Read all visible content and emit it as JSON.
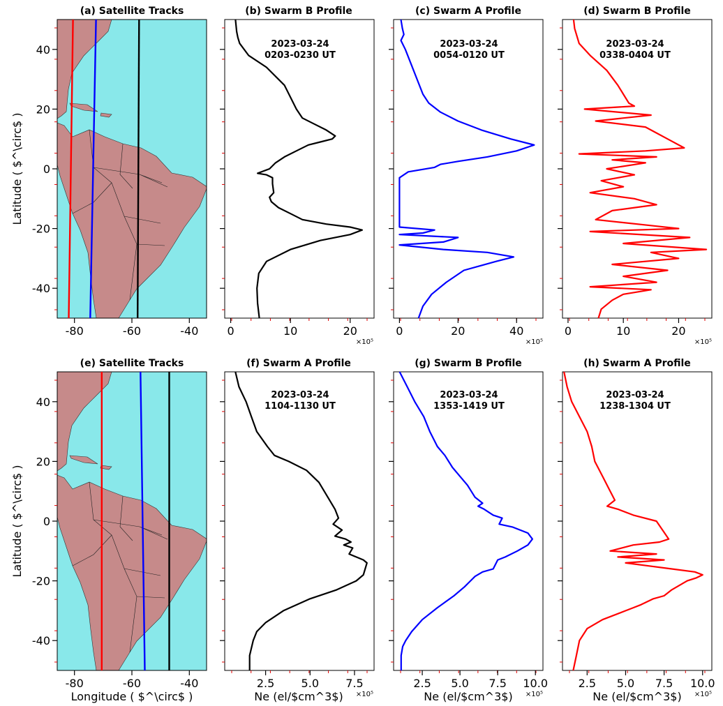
{
  "figure": {
    "ylabel": "Latitude ( $^\\circ$ )",
    "xlabel_map": "Longitude ( $^\\circ$ )",
    "xlabel_ne": "Ne (el/$cm^3$)",
    "multiplier": "×10⁵"
  },
  "chart_data": [
    {
      "id": "a",
      "type": "map",
      "title": "(a) Satellite Tracks",
      "xlim": [
        -86,
        -34
      ],
      "ylim": [
        -50,
        50
      ],
      "xticks": [
        -80,
        -60,
        -40
      ],
      "yticks": [
        -40,
        -20,
        0,
        20,
        40
      ],
      "tracks": [
        {
          "color": "#ff0000",
          "lon": [
            -80.5,
            -82.0
          ],
          "lat": [
            50,
            -50
          ]
        },
        {
          "color": "#0000ff",
          "lon": [
            -72.5,
            -74.5
          ],
          "lat": [
            50,
            -50
          ]
        },
        {
          "color": "#000000",
          "lon": [
            -57.5,
            -58.0
          ],
          "lat": [
            50,
            -50
          ]
        }
      ]
    },
    {
      "id": "b",
      "type": "line",
      "title": "(b) Swarm B Profile",
      "date": "2023-03-24",
      "time": "0203-0230 UT",
      "color": "#000000",
      "xlim": [
        -1,
        24
      ],
      "ylim": [
        -50,
        50
      ],
      "xticks": [
        0,
        10,
        20
      ],
      "show_xlabel": false,
      "x": [
        0.8,
        1.0,
        1.2,
        1.5,
        3.0,
        6.0,
        9.0,
        11.0,
        12.0,
        14.0,
        16.0,
        17.5,
        17.0,
        15.0,
        13.0,
        11.0,
        9.0,
        7.5,
        6.5,
        4.5,
        6.0,
        7.0,
        7.0,
        7.2,
        6.5,
        6.8,
        8.0,
        10.0,
        12.0,
        16.0,
        20.0,
        22.0,
        20.0,
        15.0,
        10.0,
        6.0,
        4.7,
        4.4,
        4.5,
        4.8
      ],
      "y": [
        50,
        46,
        44,
        42,
        38,
        34,
        28,
        20,
        17,
        15,
        13,
        11,
        10,
        9,
        8,
        6,
        4,
        2,
        0,
        -1.5,
        -2,
        -3,
        -5,
        -8,
        -9.5,
        -11,
        -13,
        -15,
        -17,
        -18.5,
        -19.5,
        -20.5,
        -22,
        -24,
        -27,
        -31,
        -35,
        -40,
        -45,
        -50
      ]
    },
    {
      "id": "c",
      "type": "line",
      "title": "(c) Swarm A Profile",
      "date": "2023-03-24",
      "time": "0054-0120 UT",
      "color": "#0000ff",
      "xlim": [
        -2,
        49
      ],
      "ylim": [
        -50,
        50
      ],
      "xticks": [
        0,
        20,
        40
      ],
      "show_xlabel": false,
      "x": [
        0.5,
        1.0,
        1.5,
        0.5,
        2.0,
        4.0,
        6.0,
        8.0,
        10.0,
        14.0,
        20.0,
        28.0,
        38.0,
        46.0,
        40.0,
        30.0,
        20.0,
        14.0,
        12.0,
        3.0,
        0.0,
        0.0,
        0.0,
        0.0,
        0.0,
        12.0,
        8.0,
        0.0,
        20.0,
        15.0,
        0.0,
        15.0,
        30.0,
        39.0,
        33.0,
        22.0,
        16.0,
        11.0,
        8.0,
        6.5
      ],
      "y": [
        50,
        47,
        45,
        43,
        40,
        35,
        30,
        25,
        22,
        19,
        16,
        13,
        10,
        8,
        6,
        4,
        2.5,
        1.5,
        0.5,
        -1,
        -3,
        -10,
        -15,
        -18,
        -19.5,
        -20.5,
        -21.5,
        -22,
        -23,
        -24.5,
        -25.5,
        -27,
        -28,
        -29.5,
        -31,
        -34,
        -38,
        -42,
        -46,
        -50
      ]
    },
    {
      "id": "d",
      "type": "line",
      "title": "(d) Swarm B Profile",
      "date": "2023-03-24",
      "time": "0338-0404 UT",
      "color": "#ff0000",
      "xlim": [
        -1,
        26
      ],
      "ylim": [
        -50,
        50
      ],
      "xticks": [
        0,
        10,
        20
      ],
      "show_xlabel": false,
      "x": [
        1.0,
        1.2,
        2.0,
        4.0,
        7.0,
        9.0,
        10.0,
        11.0,
        12.0,
        3.0,
        15.0,
        5.0,
        14.0,
        16.0,
        18.0,
        21.0,
        14.0,
        2.0,
        16.0,
        8.0,
        14.0,
        7.0,
        12.0,
        6.0,
        10.0,
        4.0,
        12.0,
        16.0,
        8.0,
        5.0,
        15.0,
        20.0,
        4.0,
        22.0,
        10.0,
        25.0,
        15.0,
        20.0,
        8.0,
        18.0,
        10.0,
        16.0,
        4.0,
        15.0,
        10.0,
        8.0,
        6.0,
        5.5
      ],
      "y": [
        50,
        47,
        42,
        38,
        33,
        28,
        25,
        22,
        21,
        20,
        18,
        16,
        14,
        12,
        10,
        7,
        6,
        5,
        4,
        3,
        2,
        0,
        -2,
        -4,
        -6,
        -8,
        -10,
        -12,
        -14,
        -17,
        -19,
        -20,
        -21,
        -23,
        -25,
        -27,
        -28,
        -30,
        -32,
        -34,
        -36,
        -38,
        -39.5,
        -40.5,
        -42,
        -44,
        -47,
        -50
      ]
    },
    {
      "id": "e",
      "type": "map",
      "title": "(e) Satellite Tracks",
      "xlim": [
        -86,
        -34
      ],
      "ylim": [
        -50,
        50
      ],
      "xticks": [
        -80,
        -60,
        -40
      ],
      "yticks": [
        -40,
        -20,
        0,
        20,
        40
      ],
      "xlabel": "Longitude ( $^\\circ$ )",
      "tracks": [
        {
          "color": "#ff0000",
          "lon": [
            -70.5,
            -70.5
          ],
          "lat": [
            50,
            -50
          ]
        },
        {
          "color": "#0000ff",
          "lon": [
            -57.0,
            -55.5
          ],
          "lat": [
            50,
            -50
          ]
        },
        {
          "color": "#000000",
          "lon": [
            -47.0,
            -47.0
          ],
          "lat": [
            50,
            -50
          ]
        }
      ]
    },
    {
      "id": "f",
      "type": "line",
      "title": "(f) Swarm A Profile",
      "date": "2023-03-24",
      "time": "1104-1130 UT",
      "color": "#000000",
      "xlim": [
        0.2,
        8.6
      ],
      "ylim": [
        -50,
        50
      ],
      "xticks": [
        2.5,
        5.0,
        7.5
      ],
      "show_xlabel": true,
      "x": [
        0.8,
        1.0,
        1.4,
        1.7,
        2.0,
        2.6,
        3.0,
        3.8,
        4.8,
        5.5,
        6.0,
        6.4,
        6.6,
        6.3,
        6.8,
        6.4,
        7.0,
        7.3,
        6.9,
        7.4,
        7.2,
        7.6,
        8.0,
        8.2,
        8.0,
        7.6,
        6.5,
        5.0,
        3.5,
        2.5,
        2.0,
        1.8,
        1.6,
        1.6
      ],
      "y": [
        50,
        45,
        40,
        35,
        30,
        25,
        22,
        20,
        17,
        13,
        8,
        4,
        1,
        -1,
        -3,
        -5,
        -6,
        -7,
        -8,
        -9,
        -11,
        -12,
        -13,
        -14,
        -18,
        -20,
        -23,
        -26,
        -30,
        -34,
        -37,
        -40,
        -45,
        -50
      ]
    },
    {
      "id": "g",
      "type": "line",
      "title": "(g) Swarm B Profile",
      "date": "2023-03-24",
      "time": "1353-1419 UT",
      "color": "#0000ff",
      "xlim": [
        0.6,
        10.5
      ],
      "ylim": [
        -50,
        50
      ],
      "xticks": [
        2.5,
        5.0,
        7.5,
        10.0
      ],
      "show_xlabel": true,
      "x": [
        1.0,
        1.5,
        2.0,
        2.6,
        3.0,
        3.5,
        4.0,
        4.5,
        5.0,
        5.5,
        6.0,
        6.5,
        6.2,
        6.6,
        7.2,
        7.8,
        7.6,
        8.5,
        9.5,
        9.8,
        9.5,
        8.8,
        8.0,
        7.5,
        7.2,
        6.5,
        6.0,
        5.7,
        5.3,
        4.6,
        3.5,
        2.5,
        1.8,
        1.4,
        1.2,
        1.1,
        1.1
      ],
      "y": [
        50,
        45,
        40,
        35,
        30,
        25,
        22,
        18,
        15,
        12,
        8,
        6,
        5,
        4,
        2,
        1,
        -1,
        -2,
        -4,
        -6,
        -8,
        -10,
        -12,
        -13,
        -16,
        -17,
        -18.5,
        -20,
        -22,
        -25,
        -29,
        -33,
        -37,
        -40,
        -42,
        -45,
        -50
      ]
    },
    {
      "id": "h",
      "type": "line",
      "title": "(h) Swarm A Profile",
      "date": "2023-03-24",
      "time": "1238-1304 UT",
      "color": "#ff0000",
      "xlim": [
        0.9,
        10.6
      ],
      "ylim": [
        -50,
        50
      ],
      "xticks": [
        2.5,
        5.0,
        7.5,
        10.0
      ],
      "show_xlabel": true,
      "x": [
        1.0,
        1.2,
        1.5,
        2.0,
        2.5,
        2.8,
        3.0,
        3.5,
        4.0,
        4.3,
        3.8,
        4.5,
        5.5,
        7.0,
        7.8,
        7.2,
        5.5,
        4.0,
        7.0,
        4.5,
        7.5,
        5.0,
        6.5,
        8.0,
        9.5,
        10.0,
        9.6,
        9.0,
        8.0,
        7.5,
        6.8,
        6.0,
        5.5,
        5.0,
        3.5,
        2.5,
        2.0,
        1.8,
        1.6
      ],
      "y": [
        50,
        45,
        40,
        35,
        30,
        25,
        20,
        15,
        10,
        7,
        5,
        4,
        2,
        0,
        -6,
        -7,
        -8,
        -10,
        -11,
        -12,
        -13,
        -14,
        -15,
        -16,
        -17,
        -18,
        -19,
        -20,
        -23,
        -25,
        -26,
        -28,
        -29,
        -30,
        -33,
        -36,
        -40,
        -45,
        -50
      ]
    }
  ]
}
